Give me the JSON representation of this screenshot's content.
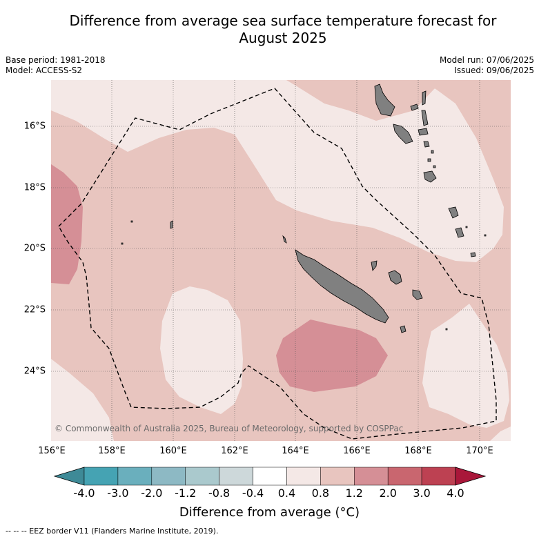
{
  "title_line1": "Difference from average sea surface temperature forecast for",
  "title_line2": "August 2025",
  "base_period": "Base period: 1981-2018",
  "model": "Model: ACCESS-S2",
  "model_run": "Model run: 07/06/2025",
  "issued": "Issued: 09/06/2025",
  "copyright": "© Commonwealth of Australia 2025, Bureau of Meteorology, supported by COSPPac",
  "lat_labels": [
    "16°S",
    "18°S",
    "20°S",
    "22°S",
    "24°S"
  ],
  "lon_labels": [
    "156°E",
    "158°E",
    "160°E",
    "162°E",
    "164°E",
    "166°E",
    "168°E",
    "170°E"
  ],
  "colorbar": {
    "title": "Difference from average (°C)",
    "labels": [
      "-4.0",
      "-3.0",
      "-2.0",
      "-1.2",
      "-0.8",
      "-0.4",
      "0.4",
      "0.8",
      "1.2",
      "2.0",
      "3.0",
      "4.0"
    ],
    "colors": [
      "#3e8a97",
      "#45a3b3",
      "#6aafbd",
      "#8db9c4",
      "#aac9cd",
      "#cdd8da",
      "#ffffff",
      "#f4e8e6",
      "#e8c5bf",
      "#d58f96",
      "#c9666f",
      "#bd4152",
      "#a9173a"
    ]
  },
  "footer": "--  --  -- EEZ border V11 (Flanders Marine Institute, 2019).",
  "colors": {
    "bg_light": "#f4e8e6",
    "bg_mid": "#e8c5bf",
    "bg_warm": "#d58f96",
    "land": "#808080"
  }
}
